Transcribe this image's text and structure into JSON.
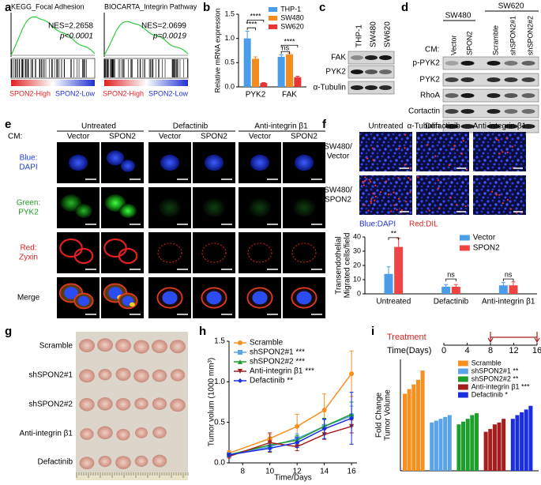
{
  "panel_labels": [
    "a",
    "b",
    "c",
    "d",
    "e",
    "f",
    "g",
    "h",
    "i"
  ],
  "gsea": [
    {
      "title": "KEGG_Focal Adhesion",
      "nes": "NES=2.2658",
      "p": "p<0.0001",
      "high": "SPON2-High",
      "low": "SPON2-Low"
    },
    {
      "title": "BIOCARTA_Integrin Pathway",
      "nes": "NES=2.0699",
      "p": "p=0.0019",
      "high": "SPON2-High",
      "low": "SPON2-Low"
    }
  ],
  "blot_c": {
    "columns": [
      "THP-1",
      "SW480",
      "SW620"
    ],
    "rows": [
      "FAK",
      "PYK2",
      "α-Tubulin"
    ]
  },
  "blot_d": {
    "groups": [
      "SW480",
      "SW620"
    ],
    "cm": "CM:",
    "columns": [
      "Vector",
      "SPON2",
      "Scramble",
      "shSPON2#1",
      "shSPON2#2"
    ],
    "rows": [
      "p-PYK2",
      "PYK2",
      "RhoA",
      "Cortactin",
      "α-Tubulin"
    ]
  },
  "imaging_e": {
    "cm": "CM:",
    "treatments": [
      "Untreated",
      "Defactinib",
      "Anti-integrin β1"
    ],
    "columns": [
      "Vector",
      "SPON2"
    ],
    "rows": [
      [
        "Blue:",
        "DAPI"
      ],
      [
        "Green:",
        "PYK2"
      ],
      [
        "Red:",
        "Zyxin"
      ],
      [
        "Merge"
      ]
    ]
  },
  "imaging_f": {
    "treatments": [
      "Untreated",
      "Defactinib",
      "Anti-integrin β1"
    ],
    "rows": [
      [
        "SW480/",
        "Vector"
      ],
      [
        "SW480/",
        "SPON2"
      ]
    ],
    "stains": [
      "Blue:DAPI",
      "Red:DIL"
    ]
  },
  "photo_g": {
    "rows": [
      "Scramble",
      "shSPON2#1",
      "shSPON2#2",
      "Anti-integrin β1",
      "Defactinib"
    ]
  },
  "chart_data": [
    {
      "type": "bar",
      "ylabel": "Relative mRNA expression",
      "categories": [
        "PYK2",
        "FAK"
      ],
      "series": [
        {
          "name": "THP-1",
          "color": "#4a9de8",
          "values": [
            1.0,
            0.62
          ],
          "errors": [
            0.15,
            0.04
          ]
        },
        {
          "name": "SW480",
          "color": "#f28c1e",
          "values": [
            0.58,
            0.67
          ],
          "errors": [
            0.04,
            0.03
          ]
        },
        {
          "name": "SW620",
          "color": "#e53535",
          "values": [
            0.08,
            0.2
          ],
          "errors": [
            0.01,
            0.02
          ]
        }
      ],
      "ylim": [
        0,
        1.5
      ],
      "yticks": [
        {
          "value": 0,
          "label": "0.0"
        },
        0.5,
        {
          "value": 1,
          "label": "1.0"
        },
        1.5
      ],
      "annotations": [
        "****",
        "****",
        "****",
        "ns"
      ]
    },
    {
      "type": "bar",
      "ylabel": [
        "Transendothelial",
        "Migrated cells/field"
      ],
      "categories": [
        "Untreated",
        "Defactinib",
        "Anti-integrin β1"
      ],
      "series": [
        {
          "name": "Vector",
          "color": "#4a9de8",
          "values": [
            14,
            5,
            6
          ],
          "errors": [
            5,
            1.5,
            2
          ]
        },
        {
          "name": "SPON2",
          "color": "#f04444",
          "values": [
            33,
            5,
            6
          ],
          "errors": [
            6,
            1.5,
            2.5
          ]
        }
      ],
      "ylim": [
        0,
        40
      ],
      "yticks": [
        0,
        10,
        20,
        30,
        40
      ],
      "annotations": [
        "**",
        "ns",
        "ns"
      ]
    },
    {
      "type": "line",
      "ylabel": "Tumor volum (1000 mm³)",
      "xlabel": "Time/Days",
      "x": [
        7,
        10,
        12,
        14,
        16
      ],
      "series": [
        {
          "name": "Scramble",
          "color": "#f7901e",
          "marker": "circle",
          "values": [
            0.12,
            0.3,
            0.45,
            0.65,
            1.1
          ],
          "errors": [
            0.03,
            0.05,
            0.15,
            0.2,
            0.28
          ]
        },
        {
          "name": "shSPON2#1 ***",
          "color": "#5ba3e8",
          "marker": "square",
          "values": [
            0.1,
            0.2,
            0.3,
            0.45,
            0.58
          ],
          "errors": [
            0.02,
            0.04,
            0.06,
            0.08,
            0.12
          ]
        },
        {
          "name": "shSPON2#2 ***",
          "color": "#1e9e2a",
          "marker": "triangle",
          "values": [
            0.1,
            0.22,
            0.28,
            0.45,
            0.6
          ],
          "errors": [
            0.02,
            0.04,
            0.06,
            0.1,
            0.15
          ]
        },
        {
          "name": "Anti-integrin β1 ***",
          "color": "#a51e1e",
          "marker": "triangle-down",
          "values": [
            0.08,
            0.25,
            0.2,
            0.35,
            0.45
          ],
          "errors": [
            0.02,
            0.12,
            0.05,
            0.06,
            0.08
          ]
        },
        {
          "name": "Defactinib **",
          "color": "#1a2ee0",
          "marker": "diamond",
          "values": [
            0.1,
            0.18,
            0.25,
            0.42,
            0.55
          ],
          "errors": [
            0.02,
            0.04,
            0.06,
            0.12,
            0.32
          ]
        }
      ],
      "xlim": [
        7,
        16.4
      ],
      "xticks": [
        8,
        10,
        12,
        14,
        16
      ],
      "ylim": [
        0,
        1.5
      ],
      "yticks": [
        {
          "value": 0,
          "label": "0.0"
        },
        0.5,
        {
          "value": 1,
          "label": "1.0"
        },
        1.5
      ]
    },
    {
      "type": "bar",
      "ylabel": [
        "Fold Change",
        "Tumor Volume"
      ],
      "treatment": "Treatment",
      "time_label": "Time(Days)",
      "xlim": [
        0,
        16
      ],
      "xticks": [
        0,
        4,
        8,
        12,
        16
      ],
      "treatment_days": [
        8,
        16
      ],
      "series": [
        {
          "name": "Scramble",
          "color": "#f7901e",
          "values": [
            8.3,
            8.8,
            9.3,
            9.8,
            10.8
          ]
        },
        {
          "name": "shSPON2#1 **",
          "color": "#5ba3e8",
          "values": [
            5.2,
            5.4,
            5.6,
            5.8,
            6.0
          ]
        },
        {
          "name": "shSPON2#2 **",
          "color": "#1e9e2a",
          "values": [
            5.0,
            5.3,
            5.6,
            6.0,
            6.2
          ]
        },
        {
          "name": "Anti-integrin β1 ***",
          "color": "#a51e1e",
          "values": [
            4.2,
            4.5,
            5.0,
            5.2,
            5.6
          ]
        },
        {
          "name": "Defactinib *",
          "color": "#1a2ee0",
          "values": [
            5.6,
            6.0,
            6.3,
            6.6,
            7.0
          ]
        }
      ],
      "ylim": [
        0,
        12
      ]
    }
  ]
}
